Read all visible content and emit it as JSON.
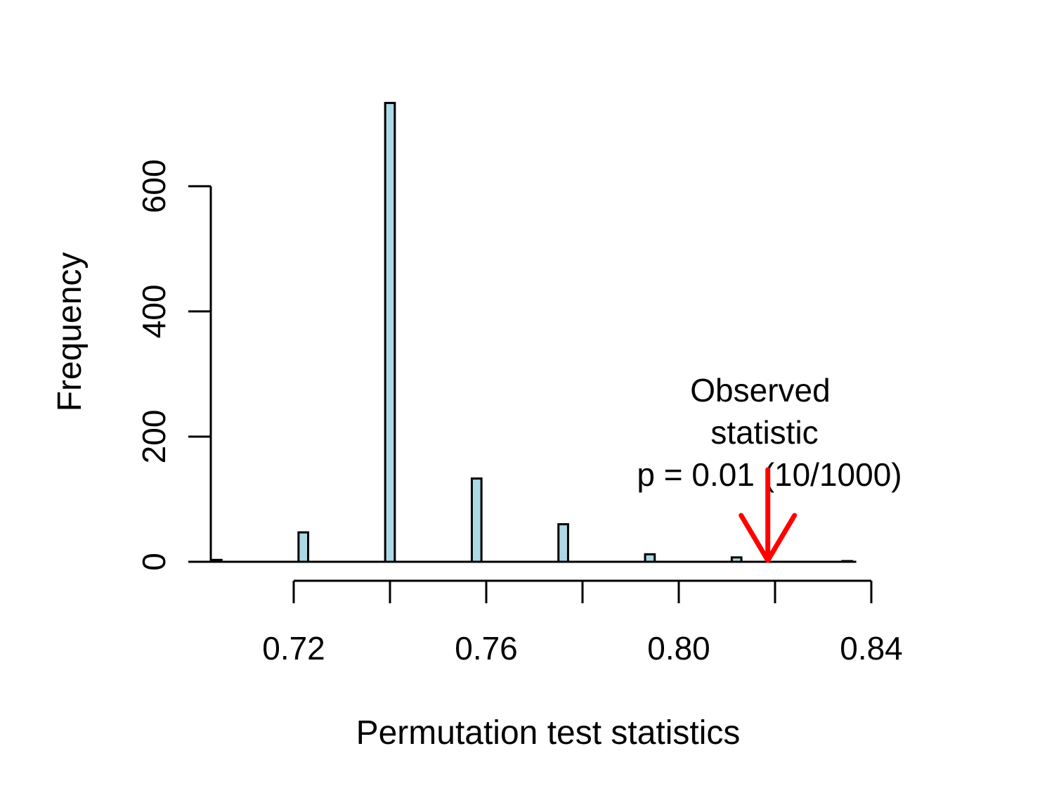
{
  "chart_data": {
    "type": "bar",
    "subtype": "histogram",
    "xlabel": "Permutation test statistics",
    "ylabel": "Frequency",
    "xlim": [
      0.703,
      0.836
    ],
    "ylim": [
      0,
      720
    ],
    "xticks": [
      "0.72",
      "0.76",
      "0.80",
      "0.84"
    ],
    "xtick_values": [
      0.72,
      0.74,
      0.76,
      0.78,
      0.8,
      0.82,
      0.84
    ],
    "xtick_labeled": [
      true,
      false,
      true,
      false,
      true,
      false,
      true
    ],
    "yticks": [
      "0",
      "200",
      "400",
      "600"
    ],
    "ytick_values": [
      0,
      200,
      400,
      600
    ],
    "bin_width": 0.002,
    "bin_start": 0.703,
    "bins": [
      {
        "x": 0.703,
        "value": 3
      },
      {
        "x": 0.721,
        "value": 47
      },
      {
        "x": 0.739,
        "value": 733
      },
      {
        "x": 0.757,
        "value": 133
      },
      {
        "x": 0.775,
        "value": 60
      },
      {
        "x": 0.793,
        "value": 12
      },
      {
        "x": 0.811,
        "value": 7
      },
      {
        "x": 0.834,
        "value": 1
      }
    ],
    "bar_color": "#add8e6",
    "observed": {
      "x": 0.8185,
      "label_lines": [
        "Observed",
        "statistic",
        "p = 0.01 (10/1000)"
      ],
      "arrow_color": "#ff0000"
    }
  }
}
